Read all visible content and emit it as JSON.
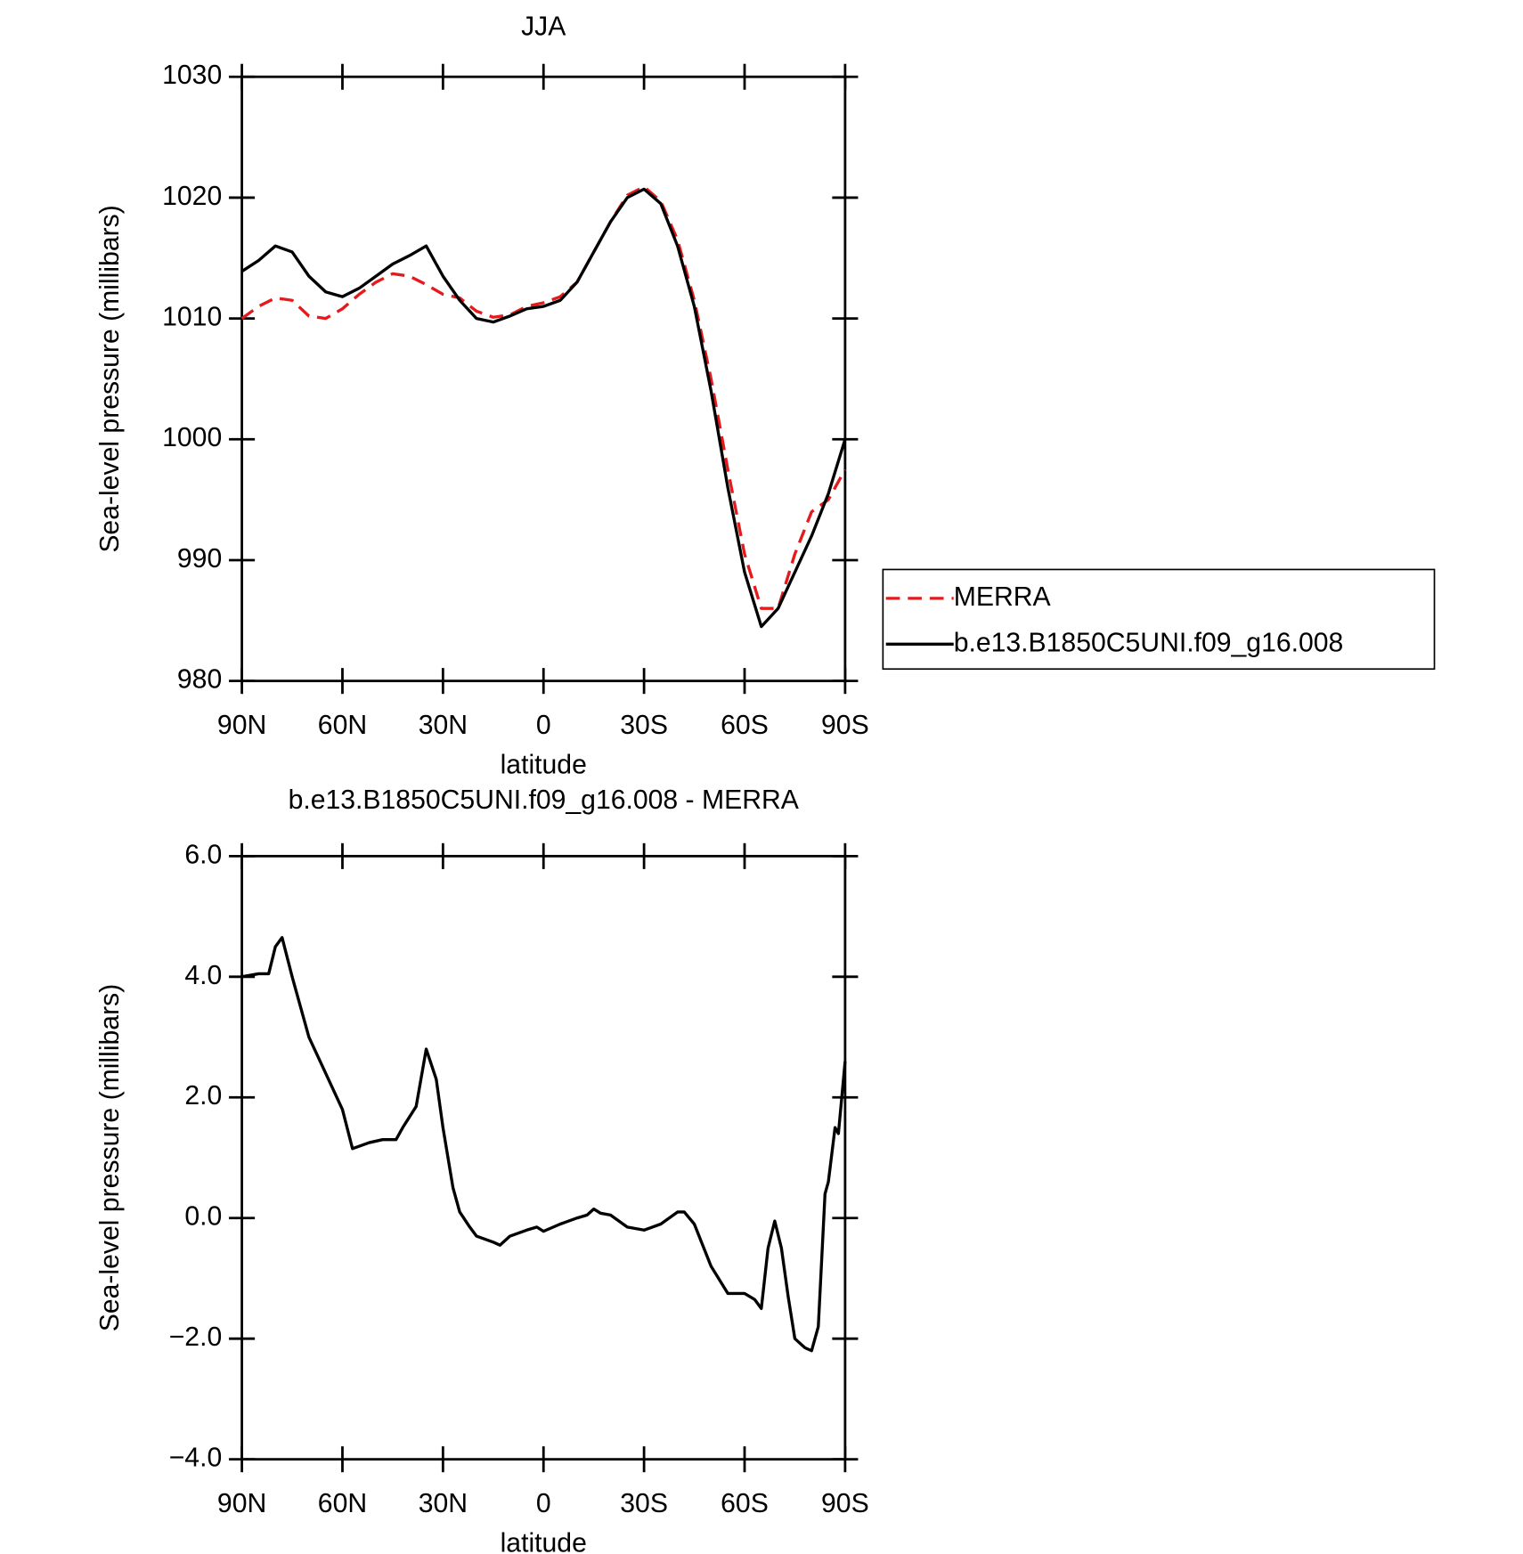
{
  "chart_data": [
    {
      "type": "line",
      "title": "JJA",
      "xlabel": "latitude",
      "ylabel": "Sea-level pressure (millibars)",
      "x": [
        90,
        85,
        80,
        75,
        70,
        65,
        60,
        55,
        50,
        45,
        40,
        35,
        30,
        25,
        20,
        15,
        10,
        5,
        0,
        -5,
        -10,
        -15,
        -20,
        -25,
        -30,
        -35,
        -40,
        -45,
        -50,
        -55,
        -60,
        -65,
        -70,
        -75,
        -80,
        -85,
        -90
      ],
      "series": [
        {
          "name": "MERRA",
          "color": "#e41a1c",
          "dash": true,
          "values": [
            1010,
            1011,
            1011.7,
            1011.5,
            1010.2,
            1010,
            1010.8,
            1012,
            1013,
            1013.7,
            1013.5,
            1012.8,
            1012,
            1011.7,
            1010.6,
            1010.1,
            1010.3,
            1011,
            1011.3,
            1011.8,
            1013,
            1015.5,
            1018,
            1020.2,
            1020.9,
            1019.7,
            1016.5,
            1011.5,
            1005,
            997.5,
            990.5,
            986,
            986,
            990.5,
            994,
            995,
            997.5
          ]
        },
        {
          "name": "b.e13.B1850C5UNI.f09_g16.008",
          "color": "#000000",
          "dash": false,
          "values": [
            1013.9,
            1014.8,
            1016,
            1015.5,
            1013.5,
            1012.2,
            1011.8,
            1012.5,
            1013.5,
            1014.5,
            1015.2,
            1016,
            1013.5,
            1011.5,
            1010,
            1009.7,
            1010.2,
            1010.8,
            1011,
            1011.5,
            1013,
            1015.5,
            1018,
            1020,
            1020.7,
            1019.5,
            1016,
            1011,
            1004,
            996,
            989,
            984.5,
            986,
            989,
            992,
            995.5,
            1000
          ]
        }
      ],
      "xlim": [
        90,
        -90
      ],
      "xticks": [
        {
          "value": 90,
          "label": "90N"
        },
        {
          "value": 60,
          "label": "60N"
        },
        {
          "value": 30,
          "label": "30N"
        },
        0,
        {
          "value": -30,
          "label": "30S"
        },
        {
          "value": -60,
          "label": "60S"
        },
        {
          "value": -90,
          "label": "90S"
        }
      ],
      "ylim": [
        980,
        1030
      ],
      "yticks": [
        980,
        990,
        1000,
        1010,
        1020,
        1030
      ],
      "legend": "right"
    },
    {
      "type": "line",
      "title": "b.e13.B1850C5UNI.f09_g16.008 - MERRA",
      "xlabel": "latitude",
      "ylabel": "Sea-level pressure (millibars)",
      "x": [
        90,
        85,
        82,
        80,
        78,
        75,
        70,
        65,
        60,
        57,
        52,
        48,
        44,
        42,
        38,
        35,
        32,
        30,
        27,
        25,
        22,
        20,
        15,
        13,
        10,
        5,
        2,
        0,
        -5,
        -10,
        -13,
        -15,
        -17,
        -20,
        -25,
        -30,
        -35,
        -40,
        -42,
        -45,
        -50,
        -55,
        -60,
        -63,
        -65,
        -67,
        -69,
        -71,
        -73,
        -75,
        -78,
        -80,
        -82,
        -84,
        -85,
        -87,
        -88,
        -90
      ],
      "values": [
        4.0,
        4.05,
        4.05,
        4.5,
        4.65,
        4.0,
        3.0,
        2.4,
        1.8,
        1.15,
        1.25,
        1.3,
        1.3,
        1.5,
        1.85,
        2.8,
        2.3,
        1.5,
        0.5,
        0.1,
        -0.15,
        -0.3,
        -0.4,
        -0.45,
        -0.3,
        -0.2,
        -0.15,
        -0.22,
        -0.1,
        0.0,
        0.05,
        0.15,
        0.08,
        0.05,
        -0.15,
        -0.2,
        -0.1,
        0.1,
        0.1,
        -0.1,
        -0.8,
        -1.25,
        -1.25,
        -1.35,
        -1.5,
        -0.5,
        -0.05,
        -0.5,
        -1.3,
        -2.0,
        -2.15,
        -2.2,
        -1.8,
        0.4,
        0.6,
        1.5,
        1.4,
        2.6
      ],
      "color": "#000000",
      "xlim": [
        90,
        -90
      ],
      "xticks": [
        {
          "value": 90,
          "label": "90N"
        },
        {
          "value": 60,
          "label": "60N"
        },
        {
          "value": 30,
          "label": "30N"
        },
        0,
        {
          "value": -30,
          "label": "30S"
        },
        {
          "value": -60,
          "label": "60S"
        },
        {
          "value": -90,
          "label": "90S"
        }
      ],
      "ylim": [
        -4,
        6
      ],
      "yticks": [
        {
          "value": -4,
          "label": "−4.0"
        },
        {
          "value": -2,
          "label": "−2.0"
        },
        {
          "value": 0,
          "label": "0.0"
        },
        {
          "value": 2,
          "label": "2.0"
        },
        {
          "value": 4,
          "label": "4.0"
        },
        {
          "value": 6,
          "label": "6.0"
        }
      ]
    }
  ]
}
